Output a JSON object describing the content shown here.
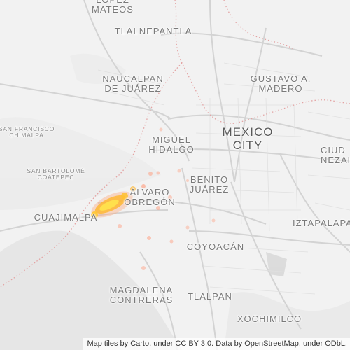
{
  "map": {
    "basemap_colors": {
      "land": "#f2f2f2",
      "roads": "#d6d6d6",
      "boundary": "#e6a0a0",
      "terrain": "#dddddd"
    },
    "heat_colors": [
      "#ffe34d",
      "#ffb82a",
      "#ff8a5c"
    ],
    "labels": {
      "lopez_mateos": "LÓPEZ\nMATEOS",
      "tlalnepantla": "TLALNEPANTLA",
      "naucalpan": "NAUCALPAN\nDE JUÁREZ",
      "gustavo_madero": "GUSTAVO A.\nMADERO",
      "mexico_city": "MEXICO\nCITY",
      "ciudad_nezahualcoyotl": "CIUD\nNEZAHUAL",
      "san_francisco": "SAN FRANCISCO\nCHIMALPA",
      "miguel_hidalgo": "MIGUEL\nHIDALGO",
      "san_bartolome": "SAN BARTOLOMÉ\nCOATEPEC",
      "benito_juarez": "BENITO\nJUÁREZ",
      "alvaro_obregon": "ÁLVARO\nOBREGÓN",
      "cuajimalpa": "CUAJIMALPA",
      "iztapalapa": "IZTAPALAPA",
      "coyoacan": "COYOACÁN",
      "magdalena_contreras": "MAGDALENA\nCONTRERAS",
      "tlalpan": "TLALPAN",
      "xochimilco": "XOCHIMILCO"
    },
    "attribution": "Map tiles by Carto, under CC BY 3.0. Data by OpenStreetMap, under ODbL."
  }
}
